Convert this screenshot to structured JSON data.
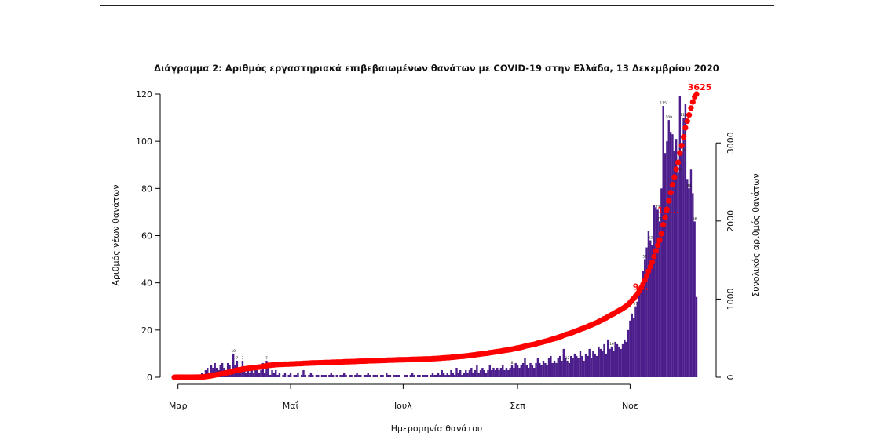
{
  "chart_data": {
    "type": "bar",
    "title": "Διάγραμμα 2: Αριθμός εργαστηριακά επιβεβαιωμένων θανάτων με COVID-19 στην Ελλάδα, 13 Δεκεμβρίου 2020",
    "xlabel": "Ημερομηνία θανάτου",
    "ylabel": "Αριθμός νέων θανάτων",
    "y2label": "Συνολικός αριθμός θανάτων",
    "ylim": [
      0,
      120
    ],
    "y2lim": [
      0,
      3625
    ],
    "yticks": [
      0,
      20,
      40,
      60,
      80,
      100,
      120
    ],
    "y2ticks": [
      0,
      1000,
      2000,
      3000
    ],
    "xticks": [
      {
        "label": "Μαρ",
        "day": 2
      },
      {
        "label": "Μαΐ",
        "day": 63
      },
      {
        "label": "Ιουλ",
        "day": 124
      },
      {
        "label": "Σεπ",
        "day": 186
      },
      {
        "label": "Νοε",
        "day": 247
      }
    ],
    "start_date": "2020-02-29",
    "series": [
      {
        "name": "Αριθμός νέων θανάτων",
        "kind": "bar",
        "color": "#4B1E8C",
        "values": [
          0,
          0,
          0,
          0,
          0,
          0,
          0,
          0,
          0,
          0,
          0,
          0,
          1,
          0,
          1,
          2,
          1,
          3,
          4,
          2,
          5,
          4,
          6,
          4,
          3,
          5,
          6,
          4,
          3,
          6,
          5,
          3,
          10,
          5,
          7,
          4,
          3,
          7,
          3,
          2,
          4,
          2,
          3,
          2,
          4,
          3,
          2,
          3,
          6,
          2,
          7,
          4,
          1,
          3,
          2,
          3,
          1,
          2,
          0,
          1,
          2,
          0,
          1,
          2,
          0,
          1,
          1,
          2,
          0,
          1,
          3,
          1,
          0,
          1,
          2,
          1,
          0,
          1,
          1,
          0,
          1,
          1,
          1,
          0,
          1,
          2,
          1,
          0,
          1,
          0,
          1,
          1,
          2,
          1,
          0,
          1,
          1,
          0,
          1,
          2,
          1,
          1,
          0,
          1,
          1,
          2,
          1,
          0,
          1,
          1,
          1,
          0,
          1,
          1,
          0,
          2,
          1,
          1,
          0,
          1,
          1,
          1,
          1,
          0,
          0,
          1,
          1,
          0,
          1,
          2,
          1,
          0,
          1,
          1,
          0,
          1,
          1,
          1,
          0,
          1,
          2,
          1,
          1,
          2,
          1,
          3,
          2,
          1,
          2,
          1,
          3,
          2,
          1,
          4,
          2,
          3,
          1,
          2,
          3,
          2,
          3,
          4,
          2,
          3,
          5,
          2,
          3,
          4,
          3,
          2,
          3,
          5,
          3,
          4,
          3,
          4,
          3,
          4,
          5,
          3,
          4,
          3,
          4,
          5,
          4,
          6,
          5,
          4,
          5,
          6,
          8,
          5,
          4,
          6,
          5,
          4,
          6,
          8,
          6,
          5,
          7,
          6,
          5,
          8,
          9,
          6,
          7,
          6,
          8,
          9,
          7,
          12,
          8,
          7,
          6,
          9,
          8,
          10,
          9,
          8,
          11,
          9,
          7,
          10,
          9,
          12,
          8,
          11,
          10,
          9,
          13,
          12,
          11,
          14,
          10,
          16,
          12,
          13,
          11,
          15,
          14,
          13,
          12,
          14,
          16,
          15,
          20,
          24,
          27,
          25,
          30,
          32,
          38,
          37,
          45,
          50,
          55,
          62,
          58,
          56,
          73,
          72,
          71,
          66,
          80,
          115,
          95,
          100,
          109,
          104,
          103,
          96,
          101,
          87,
          119,
          95,
          110,
          116,
          84,
          80,
          88,
          78,
          66,
          34
        ]
      },
      {
        "name": "Συνολικός αριθμός θανάτων",
        "kind": "line",
        "color": "#ff0000",
        "cumulative_of": "Αριθμός νέων θανάτων",
        "final_total": 3625
      }
    ],
    "bar_annotations": [
      {
        "day": 32,
        "text": "10"
      },
      {
        "day": 34,
        "text": "7"
      },
      {
        "day": 37,
        "text": "7"
      },
      {
        "day": 50,
        "text": "7"
      },
      {
        "day": 183,
        "text": "8"
      },
      {
        "day": 213,
        "text": "12"
      },
      {
        "day": 237,
        "text": "16"
      },
      {
        "day": 250,
        "text": "27"
      },
      {
        "day": 255,
        "text": "50"
      },
      {
        "day": 258,
        "text": "62"
      },
      {
        "day": 262,
        "text": "73"
      },
      {
        "day": 263,
        "text": "71"
      },
      {
        "day": 265,
        "text": "115"
      },
      {
        "day": 268,
        "text": "109"
      },
      {
        "day": 273,
        "text": "119"
      },
      {
        "day": 275,
        "text": "110"
      },
      {
        "day": 276,
        "text": "116"
      },
      {
        "day": 279,
        "text": "88"
      },
      {
        "day": 282,
        "text": "66"
      }
    ],
    "cum_annotations": [
      {
        "day": 251,
        "text": "9..."
      },
      {
        "day": 266,
        "text": "18..."
      },
      {
        "day": 283,
        "text": "3625"
      }
    ]
  }
}
